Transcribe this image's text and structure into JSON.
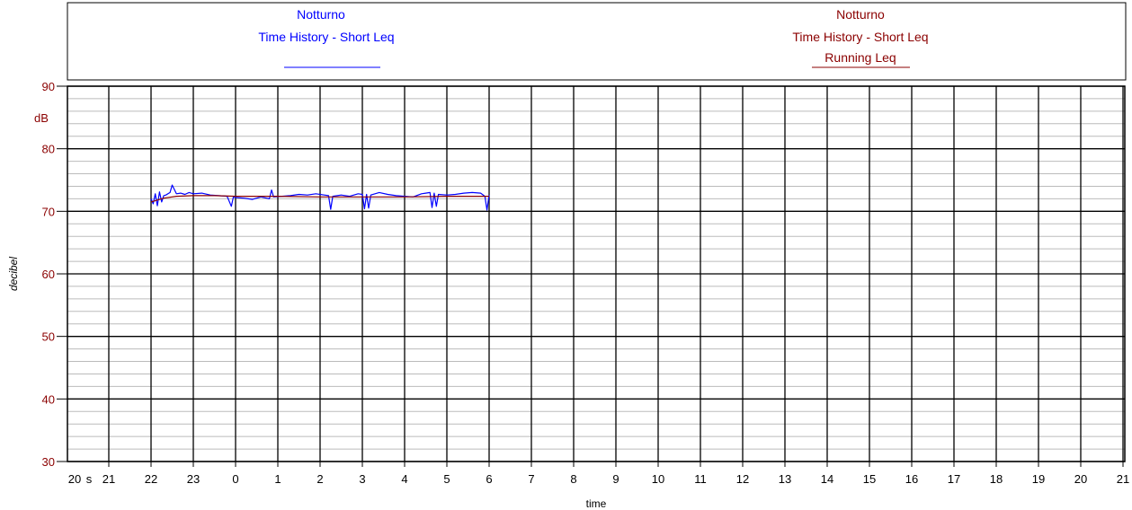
{
  "colors": {
    "series_a": "#0000ff",
    "series_b": "#8b0000",
    "grid_major": "#000000",
    "grid_minor": "#bbbbbb"
  },
  "chart_data": {
    "type": "line",
    "legend": {
      "left": {
        "line1": "Notturno",
        "line2": "Time History - Short Leq",
        "line3": ""
      },
      "right": {
        "line1": "Notturno",
        "line2": "Time History - Short Leq",
        "line3": "Running Leq"
      }
    },
    "xlabel": "time",
    "ylabel": "decibel",
    "yunit": "dB",
    "ylim": [
      30,
      90
    ],
    "y_ticks": [
      "90",
      "80",
      "70",
      "60",
      "50",
      "40",
      "30"
    ],
    "x_ticks": [
      "20",
      "s",
      "21",
      "22",
      "23",
      "0",
      "1",
      "2",
      "3",
      "4",
      "5",
      "6",
      "7",
      "8",
      "9",
      "10",
      "11",
      "12",
      "13",
      "14",
      "15",
      "16",
      "17",
      "18",
      "19",
      "20",
      "21"
    ],
    "x_range_hours": [
      21,
      46
    ],
    "grid": true,
    "series": [
      {
        "color": "#0000ff",
        "x_hours": [
          22.0,
          22.05,
          22.1,
          22.15,
          22.2,
          22.25,
          22.3,
          22.35,
          22.45,
          22.5,
          22.6,
          22.7,
          22.8,
          22.9,
          23.0,
          23.2,
          23.4,
          23.6,
          23.8,
          23.9,
          23.95,
          24.0,
          24.2,
          24.4,
          24.6,
          24.8,
          24.85,
          24.9,
          25.1,
          25.3,
          25.5,
          25.7,
          25.9,
          26.1,
          26.2,
          26.25,
          26.3,
          26.5,
          26.7,
          26.9,
          27.0,
          27.05,
          27.1,
          27.15,
          27.2,
          27.3,
          27.4,
          27.6,
          27.8,
          28.0,
          28.2,
          28.4,
          28.5,
          28.6,
          28.65,
          28.7,
          28.75,
          28.8,
          29.0,
          29.2,
          29.4,
          29.6,
          29.8,
          29.9,
          29.95,
          30.0
        ],
        "y_db": [
          72.0,
          71.2,
          72.8,
          70.9,
          73.1,
          71.5,
          72.5,
          72.6,
          73.0,
          74.2,
          72.8,
          72.9,
          72.7,
          73.0,
          72.8,
          72.9,
          72.6,
          72.5,
          72.4,
          70.8,
          72.3,
          72.2,
          72.1,
          71.9,
          72.3,
          72.0,
          73.4,
          72.3,
          72.4,
          72.5,
          72.7,
          72.6,
          72.8,
          72.6,
          72.5,
          70.3,
          72.4,
          72.6,
          72.4,
          72.8,
          72.7,
          70.4,
          72.7,
          70.5,
          72.6,
          72.8,
          73.0,
          72.7,
          72.5,
          72.4,
          72.3,
          72.8,
          72.9,
          73.0,
          70.6,
          72.9,
          70.8,
          72.7,
          72.6,
          72.7,
          72.9,
          73.0,
          72.9,
          72.4,
          70.2,
          72.6
        ]
      },
      {
        "color": "#8b0000",
        "x_hours": [
          22.0,
          22.3,
          22.6,
          23.0,
          23.5,
          24.0,
          25.0,
          26.0,
          27.0,
          28.0,
          29.0,
          30.0
        ],
        "y_db": [
          71.5,
          72.1,
          72.4,
          72.5,
          72.5,
          72.4,
          72.4,
          72.3,
          72.3,
          72.3,
          72.4,
          72.4
        ]
      }
    ]
  }
}
